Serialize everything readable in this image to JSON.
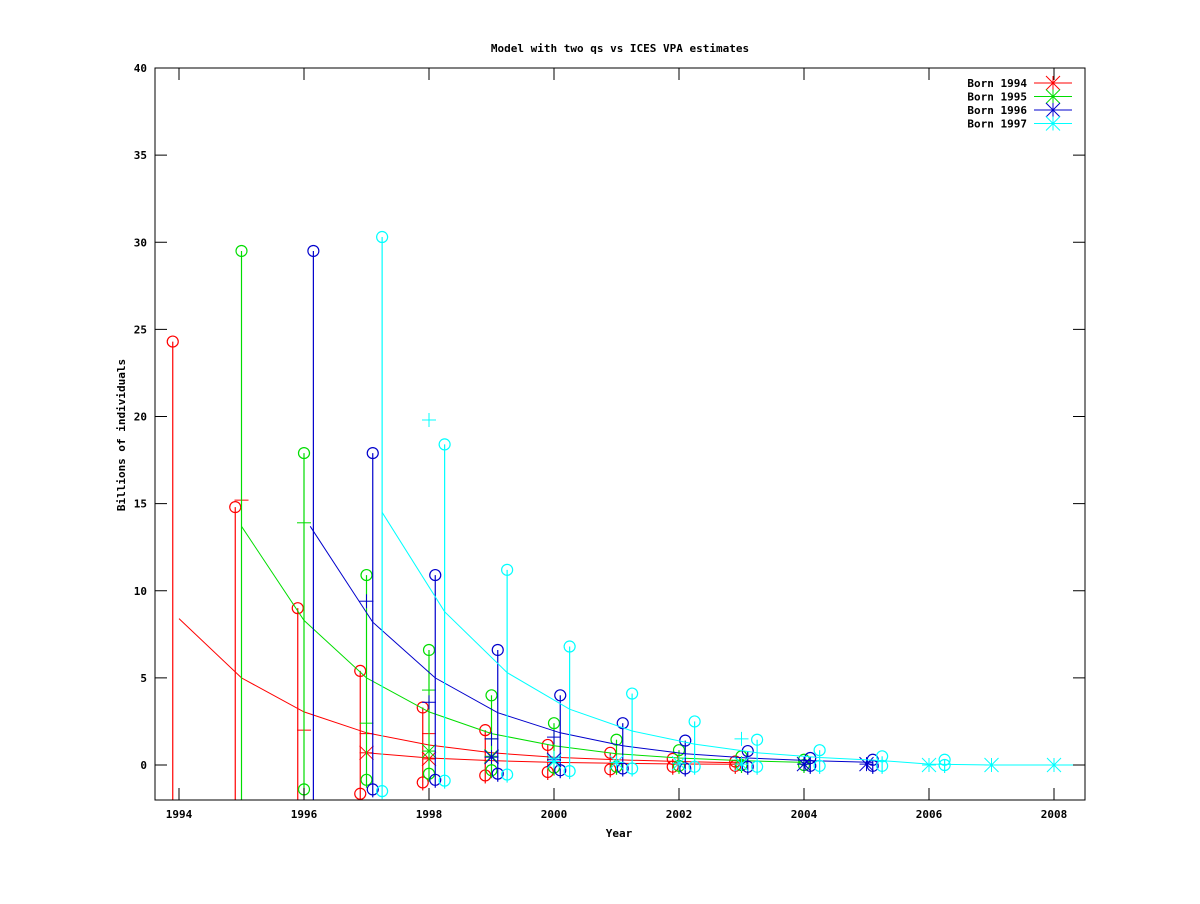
{
  "chart_data": {
    "type": "line",
    "title": "Model with two qs vs ICES VPA estimates",
    "xlabel": "Year",
    "ylabel": "Billions of individuals",
    "xlim": [
      1993.6,
      2008.5
    ],
    "ylim": [
      -2,
      40
    ],
    "xticks": [
      1994,
      1996,
      1998,
      2000,
      2002,
      2004,
      2006,
      2008
    ],
    "yticks": [
      0,
      5,
      10,
      15,
      20,
      25,
      30,
      35,
      40
    ],
    "grid": false,
    "legend_position": "top-right",
    "series": [
      {
        "name": "Born 1994",
        "color": "#ff0000",
        "model": {
          "x": [
            1994,
            1995,
            1996,
            1997,
            1998,
            1999,
            2000,
            2001,
            2002,
            2003
          ],
          "y": [
            8.4,
            5.0,
            3.05,
            1.85,
            1.15,
            0.7,
            0.45,
            0.3,
            0.2,
            0.12
          ]
        },
        "model2": {
          "x": [
            1997,
            1998,
            1999,
            2000,
            2001,
            2002,
            2003
          ],
          "y": [
            0.7,
            0.4,
            0.25,
            0.15,
            0.1,
            0.06,
            0.04
          ]
        },
        "vpa_bars": [
          {
            "x": 1993.9,
            "top": 24.3,
            "bottom": -2.0
          },
          {
            "x": 1994.9,
            "top": 14.8,
            "bottom": -2.0
          },
          {
            "x": 1995.9,
            "top": 9.0,
            "bottom": -2.0
          },
          {
            "x": 1996.9,
            "top": 5.4,
            "bottom": -1.65
          },
          {
            "x": 1997.9,
            "top": 3.3,
            "bottom": -1.0
          },
          {
            "x": 1998.9,
            "top": 2.0,
            "bottom": -0.6
          },
          {
            "x": 1999.9,
            "top": 1.15,
            "bottom": -0.4
          },
          {
            "x": 2000.9,
            "top": 0.7,
            "bottom": -0.25
          },
          {
            "x": 2001.9,
            "top": 0.35,
            "bottom": -0.1
          },
          {
            "x": 2002.9,
            "top": 0.2,
            "bottom": -0.05
          }
        ],
        "plus_points": [
          {
            "x": 1995.0,
            "y": 15.2
          },
          {
            "x": 1996.0,
            "y": 2.0
          },
          {
            "x": 1997.0,
            "y": 1.8
          },
          {
            "x": 1998.0,
            "y": 1.8
          }
        ],
        "star_points": [
          {
            "x": 1997.0,
            "y": 0.7
          },
          {
            "x": 1998.0,
            "y": 0.35
          }
        ]
      },
      {
        "name": "Born 1995",
        "color": "#00dd00",
        "model": {
          "x": [
            1995,
            1996,
            1997,
            1998,
            1999,
            2000,
            2001,
            2002,
            2003,
            2004
          ],
          "y": [
            13.7,
            8.3,
            5.0,
            3.05,
            1.8,
            1.1,
            0.65,
            0.4,
            0.25,
            0.15
          ]
        },
        "vpa_bars": [
          {
            "x": 1995.0,
            "top": 29.5,
            "bottom": -2.0
          },
          {
            "x": 1996.0,
            "top": 17.9,
            "bottom": -1.4
          },
          {
            "x": 1997.0,
            "top": 10.9,
            "bottom": -0.85
          },
          {
            "x": 1998.0,
            "top": 6.6,
            "bottom": -0.5
          },
          {
            "x": 1999.0,
            "top": 4.0,
            "bottom": -0.3
          },
          {
            "x": 2000.0,
            "top": 2.4,
            "bottom": -0.15
          },
          {
            "x": 2001.0,
            "top": 1.45,
            "bottom": -0.1
          },
          {
            "x": 2002.0,
            "top": 0.85,
            "bottom": -0.05
          },
          {
            "x": 2003.0,
            "top": 0.5,
            "bottom": 0.0
          },
          {
            "x": 2004.0,
            "top": 0.3,
            "bottom": 0.0
          }
        ],
        "plus_points": [
          {
            "x": 1996.0,
            "y": 13.9
          },
          {
            "x": 1997.0,
            "y": 2.4
          },
          {
            "x": 1998.0,
            "y": 4.3
          },
          {
            "x": 1999.0,
            "y": 1.5
          }
        ],
        "star_points": [
          {
            "x": 1998.0,
            "y": 0.8
          },
          {
            "x": 1999.0,
            "y": 0.5
          }
        ]
      },
      {
        "name": "Born 1996",
        "color": "#0000cc",
        "model": {
          "x": [
            1996.1,
            1997.1,
            1998.1,
            1999.1,
            2000.1,
            2001.1,
            2002.1,
            2003.1,
            2004.1,
            2005.1
          ],
          "y": [
            13.7,
            8.2,
            5.0,
            3.0,
            1.85,
            1.1,
            0.65,
            0.4,
            0.25,
            0.15
          ]
        },
        "vpa_bars": [
          {
            "x": 1996.15,
            "top": 29.5,
            "bottom": -2.0
          },
          {
            "x": 1997.1,
            "top": 17.9,
            "bottom": -1.4
          },
          {
            "x": 1998.1,
            "top": 10.9,
            "bottom": -0.85
          },
          {
            "x": 1999.1,
            "top": 6.6,
            "bottom": -0.5
          },
          {
            "x": 2000.1,
            "top": 4.0,
            "bottom": -0.3
          },
          {
            "x": 2001.1,
            "top": 2.4,
            "bottom": -0.2
          },
          {
            "x": 2002.1,
            "top": 1.4,
            "bottom": -0.2
          },
          {
            "x": 2003.1,
            "top": 0.8,
            "bottom": -0.1
          },
          {
            "x": 2004.1,
            "top": 0.4,
            "bottom": -0.05
          },
          {
            "x": 2005.1,
            "top": 0.3,
            "bottom": -0.05
          }
        ],
        "plus_points": [
          {
            "x": 1997.0,
            "y": 9.4
          },
          {
            "x": 1998.0,
            "y": 3.6
          },
          {
            "x": 1999.0,
            "y": 1.5
          },
          {
            "x": 2000.0,
            "y": 1.6
          }
        ],
        "star_points": [
          {
            "x": 1999.0,
            "y": 0.45
          },
          {
            "x": 2000.0,
            "y": 0.3
          },
          {
            "x": 2004.0,
            "y": 0.05
          },
          {
            "x": 2005.0,
            "y": 0.05
          }
        ]
      },
      {
        "name": "Born 1997",
        "color": "#00ffff",
        "model": {
          "x": [
            1997.25,
            1998.25,
            1999.25,
            2000.25,
            2001.25,
            2002.25,
            2003.25,
            2004.25,
            2005.25,
            2006,
            2007,
            2008,
            2008.5
          ],
          "y": [
            14.5,
            8.8,
            5.3,
            3.2,
            1.95,
            1.2,
            0.7,
            0.43,
            0.25,
            0.05,
            0.0,
            0.0,
            0.0
          ]
        },
        "vpa_bars": [
          {
            "x": 1997.25,
            "top": 30.3,
            "bottom": -1.5
          },
          {
            "x": 1998.25,
            "top": 18.4,
            "bottom": -0.9
          },
          {
            "x": 1999.25,
            "top": 11.2,
            "bottom": -0.55
          },
          {
            "x": 2000.25,
            "top": 6.8,
            "bottom": -0.35
          },
          {
            "x": 2001.25,
            "top": 4.1,
            "bottom": -0.2
          },
          {
            "x": 2002.25,
            "top": 2.5,
            "bottom": -0.1
          },
          {
            "x": 2003.25,
            "top": 1.45,
            "bottom": -0.1
          },
          {
            "x": 2004.25,
            "top": 0.85,
            "bottom": -0.05
          },
          {
            "x": 2005.25,
            "top": 0.5,
            "bottom": -0.05
          },
          {
            "x": 2006.25,
            "top": 0.3,
            "bottom": 0.0
          }
        ],
        "plus_points": [
          {
            "x": 1998.0,
            "y": 19.8
          },
          {
            "x": 2003.0,
            "y": 1.5
          },
          {
            "x": 2000.0,
            "y": 0.4
          }
        ],
        "star_points": [
          {
            "x": 2000.0,
            "y": 0.2
          },
          {
            "x": 2001.0,
            "y": 0.15
          },
          {
            "x": 2002.0,
            "y": 0.1
          },
          {
            "x": 2003.0,
            "y": 0.05
          },
          {
            "x": 2006.0,
            "y": 0.0
          },
          {
            "x": 2007.0,
            "y": 0.0
          },
          {
            "x": 2008.0,
            "y": 0.0
          }
        ]
      }
    ]
  },
  "legend": {
    "items": [
      {
        "label": "Born 1994",
        "color": "#ff0000"
      },
      {
        "label": "Born 1995",
        "color": "#00dd00"
      },
      {
        "label": "Born 1996",
        "color": "#0000cc"
      },
      {
        "label": "Born 1997",
        "color": "#00ffff"
      }
    ]
  }
}
